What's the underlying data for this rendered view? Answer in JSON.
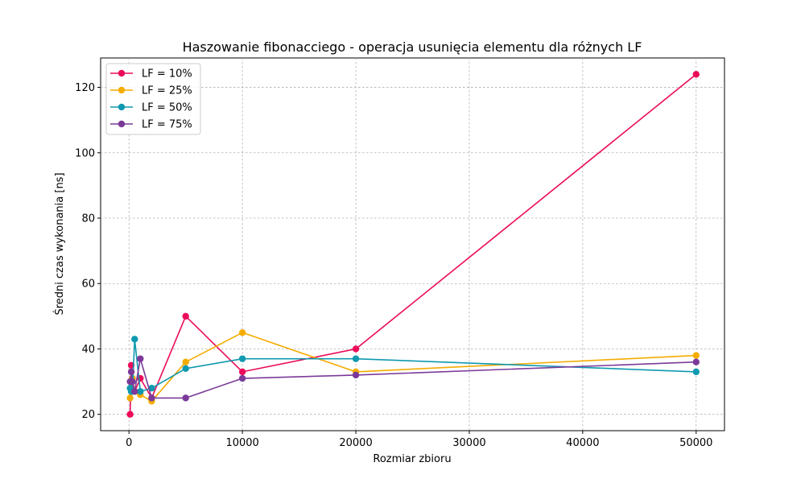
{
  "chart_data": {
    "type": "line",
    "title": "Haszowanie fibonacciego - operacja usunięcia elementu dla różnych LF",
    "xlabel": "Rozmiar zbioru",
    "ylabel": "Średni czas wykonania [ns]",
    "xlim": [
      -2500,
      52500
    ],
    "ylim": [
      15,
      129
    ],
    "xticks": [
      0,
      10000,
      20000,
      30000,
      40000,
      50000
    ],
    "yticks": [
      20,
      40,
      60,
      80,
      100,
      120
    ],
    "grid": true,
    "legend_position": "top-left",
    "x": [
      100,
      200,
      300,
      500,
      1000,
      2000,
      5000,
      10000,
      20000,
      50000
    ],
    "series": [
      {
        "name": "LF = 10%",
        "color": "#ec0b5a",
        "values": [
          20,
          35,
          31,
          27,
          31,
          25,
          50,
          33,
          40,
          124
        ]
      },
      {
        "name": "LF = 25%",
        "color": "#f5ac00",
        "values": [
          25,
          27,
          31,
          27,
          26,
          24,
          36,
          45,
          33,
          38
        ]
      },
      {
        "name": "LF = 50%",
        "color": "#1099b0",
        "values": [
          28,
          27,
          27,
          43,
          27,
          28,
          34,
          37,
          37,
          33
        ]
      },
      {
        "name": "LF = 75%",
        "color": "#7b3a99",
        "values": [
          30,
          33,
          30,
          27,
          37,
          25,
          25,
          31,
          32,
          36
        ]
      }
    ]
  }
}
